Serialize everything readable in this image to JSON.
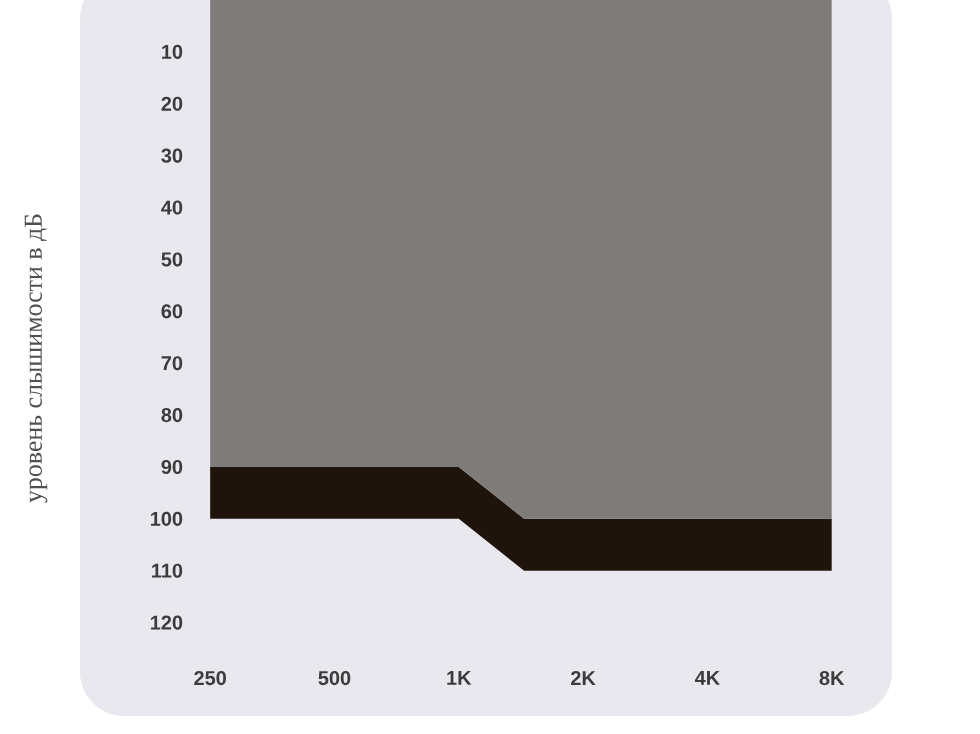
{
  "chart_data": {
    "type": "area",
    "ylabel": "уровень слышимости в дБ",
    "stacked": true,
    "log": "x",
    "x": [
      250,
      1000,
      1440,
      8000
    ],
    "xlim": [
      121,
      11200
    ],
    "ylim": [
      138,
      0
    ],
    "xticks": [
      250,
      500,
      {
        "value": 1000,
        "label": "1K"
      },
      {
        "value": 2000,
        "label": "2K"
      },
      {
        "value": 4000,
        "label": "4K"
      },
      {
        "value": 8000,
        "label": "8K"
      }
    ],
    "yticks": [
      10,
      20,
      30,
      40,
      50,
      60,
      70,
      80,
      90,
      100,
      110,
      120
    ],
    "series": [
      {
        "color": "#7f7b79",
        "values": [
          90,
          90,
          100,
          100
        ]
      },
      {
        "color": "#1e140c",
        "values": [
          10,
          10,
          10,
          10
        ]
      }
    ]
  }
}
